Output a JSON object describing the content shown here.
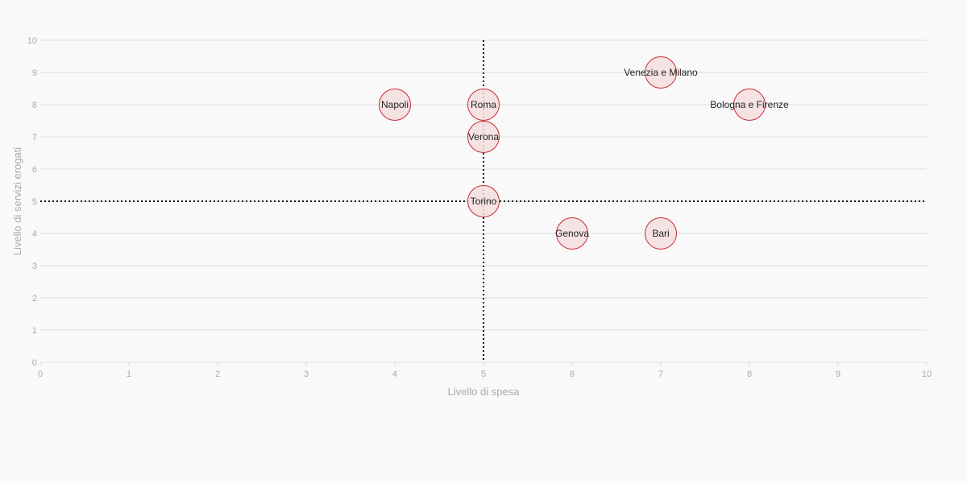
{
  "chart_data": {
    "type": "scatter",
    "title": "",
    "xlabel": "Livello di spesa",
    "ylabel": "Livello di servizi erogati",
    "xlim": [
      0,
      10
    ],
    "ylim": [
      0,
      10
    ],
    "x_ticks": [
      "0",
      "1",
      "2",
      "3",
      "4",
      "5",
      "6",
      "7",
      "8",
      "9",
      "10"
    ],
    "y_ticks": [
      "0",
      "1",
      "2",
      "3",
      "4",
      "5",
      "6",
      "7",
      "8",
      "9",
      "10"
    ],
    "grid": "horizontal",
    "reference_lines": {
      "x": 5,
      "y": 5
    },
    "points": [
      {
        "label": "Venezia e Milano",
        "x": 7,
        "y": 9
      },
      {
        "label": "Napoli",
        "x": 4,
        "y": 8
      },
      {
        "label": "Roma",
        "x": 5,
        "y": 8
      },
      {
        "label": "Bologna e Firenze",
        "x": 8,
        "y": 8
      },
      {
        "label": "Verona",
        "x": 5,
        "y": 7
      },
      {
        "label": "Torino",
        "x": 5,
        "y": 5
      },
      {
        "label": "Genova",
        "x": 6,
        "y": 4
      },
      {
        "label": "Bari",
        "x": 7,
        "y": 4
      }
    ],
    "colors": {
      "point_fill": "#f5dfe1",
      "point_stroke": "#cc2a36",
      "grid": "#dddddd",
      "reference": "#111111"
    }
  }
}
